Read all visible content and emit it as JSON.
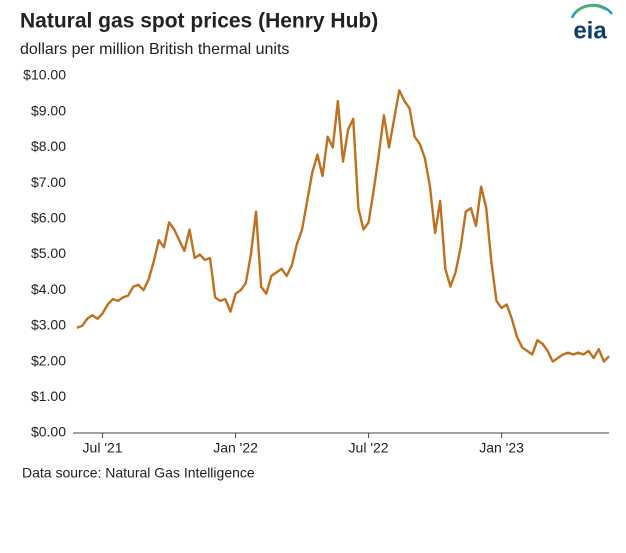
{
  "chart_data": {
    "type": "line",
    "title": "Natural gas spot prices (Henry Hub)",
    "subtitle": "dollars per million British thermal units",
    "source": "Data source: Natural Gas Intelligence",
    "logo": "eia",
    "categories": [
      null,
      null,
      null,
      null,
      null,
      "Jul '21",
      null,
      null,
      null,
      null,
      null,
      null,
      null,
      null,
      null,
      null,
      null,
      null,
      null,
      null,
      null,
      null,
      null,
      null,
      null,
      null,
      null,
      null,
      null,
      null,
      null,
      "Jan '22",
      null,
      null,
      null,
      null,
      null,
      null,
      null,
      null,
      null,
      null,
      null,
      null,
      null,
      null,
      null,
      null,
      null,
      null,
      null,
      null,
      null,
      null,
      null,
      null,
      null,
      "Jul '22",
      null,
      null,
      null,
      null,
      null,
      null,
      null,
      null,
      null,
      null,
      null,
      null,
      null,
      null,
      null,
      null,
      null,
      null,
      null,
      null,
      null,
      null,
      null,
      null,
      null,
      "Jan '23",
      null,
      null,
      null,
      null,
      null,
      null,
      null,
      null,
      null,
      null,
      null,
      null,
      null,
      null,
      null,
      null,
      null,
      null,
      null,
      null,
      null
    ],
    "values": [
      2.95,
      3.0,
      3.2,
      3.3,
      3.2,
      3.35,
      3.6,
      3.75,
      3.7,
      3.8,
      3.85,
      4.1,
      4.15,
      4.0,
      4.3,
      4.8,
      5.4,
      5.2,
      5.9,
      5.7,
      5.4,
      5.1,
      5.7,
      4.9,
      5.0,
      4.85,
      4.9,
      3.8,
      3.7,
      3.75,
      3.4,
      3.9,
      4.0,
      4.2,
      5.0,
      6.2,
      4.1,
      3.9,
      4.4,
      4.5,
      4.6,
      4.4,
      4.7,
      5.3,
      5.7,
      6.5,
      7.3,
      7.8,
      7.2,
      8.3,
      8.0,
      9.3,
      7.6,
      8.5,
      8.8,
      6.3,
      5.7,
      5.9,
      6.8,
      7.8,
      8.9,
      8.0,
      8.8,
      9.6,
      9.3,
      9.1,
      8.3,
      8.1,
      7.7,
      6.9,
      5.6,
      6.5,
      4.6,
      4.1,
      4.5,
      5.2,
      6.2,
      6.3,
      5.8,
      6.9,
      6.3,
      4.8,
      3.7,
      3.5,
      3.6,
      3.2,
      2.7,
      2.4,
      2.3,
      2.2,
      2.6,
      2.5,
      2.3,
      2.0,
      2.1,
      2.2,
      2.25,
      2.2,
      2.25,
      2.2,
      2.3,
      2.1,
      2.35,
      2.0,
      2.15
    ],
    "color": "#c0711f",
    "ylim": [
      0,
      10
    ],
    "yticks": [
      {
        "value": 0,
        "label": "$0.00"
      },
      {
        "value": 1,
        "label": "$1.00"
      },
      {
        "value": 2,
        "label": "$2.00"
      },
      {
        "value": 3,
        "label": "$3.00"
      },
      {
        "value": 4,
        "label": "$4.00"
      },
      {
        "value": 5,
        "label": "$5.00"
      },
      {
        "value": 6,
        "label": "$6.00"
      },
      {
        "value": 7,
        "label": "$7.00"
      },
      {
        "value": 8,
        "label": "$8.00"
      },
      {
        "value": 9,
        "label": "$9.00"
      },
      {
        "value": 10,
        "label": "$10.00"
      }
    ],
    "grid": false
  }
}
